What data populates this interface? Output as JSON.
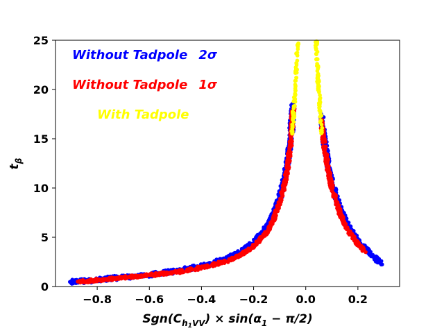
{
  "chart_data": {
    "type": "scatter",
    "title": "",
    "xlabel": "Sgn(C_{h1VV}) × sin(α1 − π/2)",
    "ylabel": "t_β",
    "xlim": [
      -0.96,
      0.36
    ],
    "ylim": [
      0,
      25
    ],
    "x_ticks": [
      -0.8,
      -0.6,
      -0.4,
      -0.2,
      0.0,
      0.2
    ],
    "x_tick_labels": [
      "−0.8",
      "−0.6",
      "−0.4",
      "−0.2",
      "0.0",
      "0.2"
    ],
    "y_ticks": [
      0,
      5,
      10,
      15,
      20,
      25
    ],
    "y_tick_labels": [
      "0",
      "5",
      "10",
      "15",
      "20",
      "25"
    ],
    "grid": false,
    "series": [
      {
        "name": "Without Tadpole 2σ",
        "label_text": "Without Tadpole",
        "label_sigma": "2σ",
        "color": "#0000ff",
        "left_branch": [
          [
            -0.905,
            0.45
          ],
          [
            -0.85,
            0.55
          ],
          [
            -0.8,
            0.7
          ],
          [
            -0.7,
            0.95
          ],
          [
            -0.6,
            1.2
          ],
          [
            -0.5,
            1.55
          ],
          [
            -0.4,
            2.05
          ],
          [
            -0.3,
            2.85
          ],
          [
            -0.25,
            3.5
          ],
          [
            -0.2,
            4.5
          ],
          [
            -0.15,
            6.0
          ],
          [
            -0.12,
            7.5
          ],
          [
            -0.1,
            9.0
          ],
          [
            -0.08,
            11.0
          ],
          [
            -0.065,
            13.5
          ],
          [
            -0.055,
            16.0
          ],
          [
            -0.048,
            18.5
          ]
        ],
        "right_branch": [
          [
            0.06,
            17.5
          ],
          [
            0.07,
            15.0
          ],
          [
            0.085,
            12.5
          ],
          [
            0.1,
            10.5
          ],
          [
            0.13,
            8.0
          ],
          [
            0.16,
            6.2
          ],
          [
            0.2,
            4.6
          ],
          [
            0.24,
            3.5
          ],
          [
            0.27,
            2.8
          ],
          [
            0.29,
            2.3
          ]
        ]
      },
      {
        "name": "Without Tadpole 1σ",
        "label_text": "Without Tadpole",
        "label_sigma": "1σ",
        "color": "#ff0000",
        "left_branch": [
          [
            -0.87,
            0.5
          ],
          [
            -0.8,
            0.65
          ],
          [
            -0.7,
            0.9
          ],
          [
            -0.6,
            1.15
          ],
          [
            -0.5,
            1.45
          ],
          [
            -0.4,
            1.9
          ],
          [
            -0.3,
            2.6
          ],
          [
            -0.25,
            3.2
          ],
          [
            -0.2,
            4.1
          ],
          [
            -0.15,
            5.5
          ],
          [
            -0.12,
            7.0
          ],
          [
            -0.1,
            8.5
          ],
          [
            -0.08,
            10.5
          ],
          [
            -0.065,
            13.0
          ],
          [
            -0.055,
            15.5
          ],
          [
            -0.048,
            18.0
          ]
        ],
        "right_branch": [
          [
            0.06,
            17.0
          ],
          [
            0.07,
            14.5
          ],
          [
            0.085,
            12.0
          ],
          [
            0.1,
            10.0
          ],
          [
            0.13,
            7.5
          ],
          [
            0.16,
            5.8
          ],
          [
            0.2,
            4.3
          ],
          [
            0.23,
            3.5
          ]
        ]
      },
      {
        "name": "With Tadpole",
        "label_text": "With Tadpole",
        "label_sigma": "",
        "color": "#ffff00",
        "left_branch": [
          [
            -0.052,
            15.5
          ],
          [
            -0.047,
            17.5
          ],
          [
            -0.042,
            19.5
          ],
          [
            -0.038,
            21.5
          ],
          [
            -0.034,
            23.5
          ],
          [
            -0.031,
            25.0
          ]
        ],
        "right_branch": [
          [
            0.04,
            25.0
          ],
          [
            0.043,
            23.0
          ],
          [
            0.047,
            21.0
          ],
          [
            0.052,
            19.0
          ],
          [
            0.057,
            17.0
          ],
          [
            0.062,
            15.5
          ]
        ]
      }
    ]
  }
}
